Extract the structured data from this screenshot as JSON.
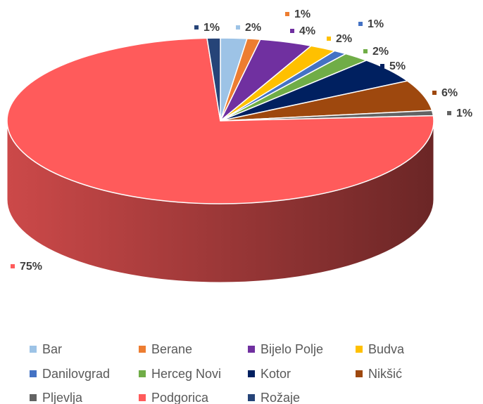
{
  "chart_data": {
    "type": "pie",
    "categories": [
      "Bar",
      "Berane",
      "Bijelo Polje",
      "Budva",
      "Danilovgrad",
      "Herceg Novi",
      "Kotor",
      "Nikšić",
      "Pljevlja",
      "Podgorica",
      "Rožaje"
    ],
    "values": [
      2,
      1,
      4,
      2,
      1,
      2,
      5,
      6,
      1,
      75,
      1
    ],
    "value_labels": [
      "2%",
      "1%",
      "4%",
      "2%",
      "1%",
      "2%",
      "5%",
      "6%",
      "1%",
      "75%",
      "1%"
    ],
    "colors": [
      "#9dc3e6",
      "#ed7d31",
      "#7030a0",
      "#ffc000",
      "#4472c4",
      "#70ad47",
      "#002060",
      "#9e480e",
      "#636363",
      "#ff5b5b",
      "#264478"
    ],
    "legend": "bottom"
  }
}
